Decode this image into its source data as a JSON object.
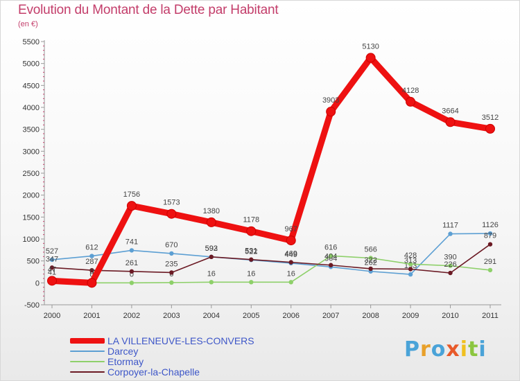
{
  "title": "Evolution du Montant de la Dette par Habitant",
  "subtitle": "(en €)",
  "brand": {
    "text": "Proxiti",
    "letter_colors": [
      "#4aa3d8",
      "#e8a02a",
      "#4aa3d8",
      "#e85a2a",
      "#f0c020",
      "#8cc63f",
      "#4aa3d8"
    ]
  },
  "chart_data": {
    "type": "line",
    "x": [
      "2000",
      "2001",
      "2002",
      "2003",
      "2004",
      "2005",
      "2006",
      "2007",
      "2008",
      "2009",
      "2010",
      "2011"
    ],
    "ylim": [
      -500,
      5500
    ],
    "yticks": [
      "-500",
      "0",
      "500",
      "1000",
      "1500",
      "2000",
      "2500",
      "3000",
      "3500",
      "4000",
      "4500",
      "5000",
      "5500"
    ],
    "grid": false,
    "legend_position": "bottom-left",
    "series": [
      {
        "name": "Darcey",
        "color": "#5c9fd3",
        "values": [
          527,
          612,
          741,
          670,
          593,
          522,
          449,
          364,
          262,
          193,
          1117,
          1126
        ],
        "labels": [
          "527",
          "612",
          "741",
          "670",
          "593",
          "522",
          "449",
          "364",
          "262",
          "193",
          "1117",
          "1126"
        ]
      },
      {
        "name": "Etormay",
        "color": "#8ed06a",
        "values": [
          41,
          0,
          0,
          6,
          16,
          16,
          16,
          616,
          566,
          428,
          390,
          291
        ],
        "labels": [
          "41",
          "0",
          "0",
          "6",
          "16",
          "16",
          "16",
          "616",
          "566",
          "428",
          "390",
          "291"
        ]
      },
      {
        "name": "Corpoyer-la-Chapelle",
        "color": "#6b1a24",
        "values": [
          347,
          287,
          261,
          235,
          592,
          531,
          469,
          404,
          322,
          313,
          226,
          879
        ],
        "labels": [
          "347",
          "287",
          "261",
          "235",
          "592",
          "531",
          "469",
          "404",
          "322",
          "313",
          "226",
          "879"
        ]
      },
      {
        "name": "LA VILLENEUVE-LES-CONVERS",
        "color": "#ee1111",
        "values": [
          47,
          0,
          1756,
          1573,
          1380,
          1178,
          967,
          3903,
          5130,
          4128,
          3664,
          3512
        ],
        "labels": [
          "47",
          "0",
          "1756",
          "1573",
          "1380",
          "1178",
          "967",
          "3903",
          "5130",
          "4128",
          "3664",
          "3512"
        ]
      }
    ]
  },
  "legend": [
    {
      "label": "LA VILLENEUVE-LES-CONVERS",
      "color": "#ee1111"
    },
    {
      "label": "Darcey",
      "color": "#5c9fd3"
    },
    {
      "label": "Etormay",
      "color": "#8ed06a"
    },
    {
      "label": "Corpoyer-la-Chapelle",
      "color": "#6b1a24"
    }
  ]
}
